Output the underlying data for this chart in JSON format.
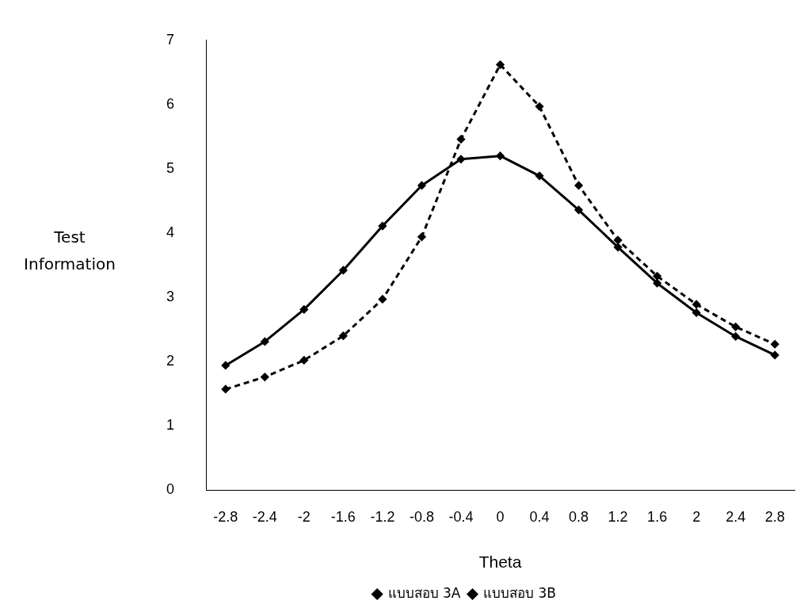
{
  "chart_data": {
    "type": "line",
    "xlabel": "Theta",
    "ylabel": "Test Information",
    "categories": [
      "-2.8",
      "-2.4",
      "-2",
      "-1.6",
      "-1.2",
      "-0.8",
      "-0.4",
      "0",
      "0.4",
      "0.8",
      "1.2",
      "1.6",
      "2",
      "2.4",
      "2.8"
    ],
    "series": [
      {
        "name": "แบบสอบ 3A",
        "color": "#000000",
        "line_style": "solid",
        "values": [
          1.94,
          2.31,
          2.81,
          3.42,
          4.11,
          4.74,
          5.15,
          5.2,
          4.89,
          4.36,
          3.78,
          3.22,
          2.76,
          2.39,
          2.1
        ]
      },
      {
        "name": "แบบสอบ 3B",
        "color": "#000000",
        "line_style": "dashed",
        "values": [
          1.57,
          1.76,
          2.02,
          2.4,
          2.97,
          3.94,
          5.46,
          6.62,
          5.97,
          4.74,
          3.89,
          3.33,
          2.89,
          2.54,
          2.27
        ]
      }
    ],
    "ylim": [
      0,
      7
    ],
    "yticks": [
      0,
      1,
      2,
      3,
      4,
      5,
      6,
      7
    ],
    "grid": false,
    "legend": "bottom",
    "marker": "diamond"
  }
}
